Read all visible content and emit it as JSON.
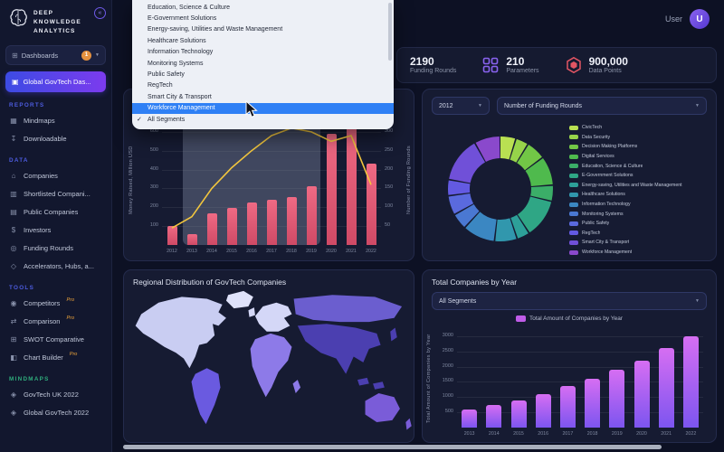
{
  "theme": {
    "page_bg": "#0d1124",
    "card_bg": "#161b32",
    "accent_gradient_start": "#3c4be4",
    "accent_gradient_end": "#7c3bee",
    "highlight_blue": "#2f80f5",
    "badge_orange": "#e6913f",
    "pro_orange": "#eda43b",
    "sections_blue": "#4d5ce0",
    "mindmaps_green": "#2fae7d",
    "bar_pink": "#e2556e",
    "line_yellow": "#f2c63e",
    "bar_purple": "#c05ce8"
  },
  "sidebar": {
    "logo_lines": [
      "DEEP",
      "KNOWLEDGE",
      "ANALYTICS"
    ],
    "dashboards_label": "Dashboards",
    "dashboards_badge": "1",
    "active_dashboard": "Global GovTech Das...",
    "pro_label": "Pro",
    "sections": [
      {
        "title": "REPORTS",
        "title_color": "#4d5ce0",
        "items": [
          {
            "label": "Mindmaps",
            "icon": "mindmaps-icon"
          },
          {
            "label": "Downloadable",
            "icon": "download-icon"
          }
        ]
      },
      {
        "title": "DATA",
        "title_color": "#4d5ce0",
        "items": [
          {
            "label": "Companies",
            "icon": "companies-icon"
          },
          {
            "label": "Shortlisted Compani...",
            "icon": "shortlisted-icon"
          },
          {
            "label": "Public Companies",
            "icon": "public-companies-icon"
          },
          {
            "label": "Investors",
            "icon": "investors-icon"
          },
          {
            "label": "Funding Rounds",
            "icon": "funding-rounds-icon"
          },
          {
            "label": "Accelerators, Hubs, a...",
            "icon": "accelerators-icon"
          }
        ]
      },
      {
        "title": "TOOLS",
        "title_color": "#4d5ce0",
        "items": [
          {
            "label": "Competitors",
            "icon": "competitors-icon",
            "pro": true
          },
          {
            "label": "Comparison",
            "icon": "comparison-icon",
            "pro": true
          },
          {
            "label": "SWOT Comparative",
            "icon": "swot-icon"
          },
          {
            "label": "Chart Builder",
            "icon": "chart-builder-icon",
            "pro": true
          }
        ]
      },
      {
        "title": "MINDMAPS",
        "title_color": "#2fae7d",
        "items": [
          {
            "label": "GovTech UK 2022",
            "icon": "mindmap-doc-icon"
          },
          {
            "label": "Global GovTech 2022",
            "icon": "mindmap-doc-icon"
          }
        ]
      }
    ]
  },
  "header": {
    "user_label": "User",
    "avatar_initial": "U"
  },
  "stats": [
    {
      "value": "2190",
      "label": "Funding Rounds"
    },
    {
      "value": "210",
      "label": "Parameters",
      "icon": "parameters-grid-icon",
      "icon_color": "#8a63f0"
    },
    {
      "value": "900,000",
      "label": "Data Points",
      "icon": "datapoints-hexagon-icon",
      "icon_color": "#e25563"
    }
  ],
  "dropdown": {
    "items": [
      {
        "label": "Education, Science & Culture"
      },
      {
        "label": "E-Government Solutions"
      },
      {
        "label": "Energy-saving, Utilities and Waste Management"
      },
      {
        "label": "Healthcare Solutions"
      },
      {
        "label": "Information Technology"
      },
      {
        "label": "Monitoring Systems"
      },
      {
        "label": "Public Safety"
      },
      {
        "label": "RegTech"
      },
      {
        "label": "Smart City & Transport"
      },
      {
        "label": "Workforce Management",
        "highlighted": true
      },
      {
        "label": "All Segments",
        "checked": true
      }
    ]
  },
  "chart_data": [
    {
      "id": "funding-by-year-combo",
      "type": "combo",
      "legend": [
        {
          "label": "Number of Funding Rounds",
          "color": "#f2c63e"
        },
        {
          "label": "Money Raised, Million USD",
          "color": "#e2556e"
        }
      ],
      "categories": [
        "2012",
        "2013",
        "2014",
        "2015",
        "2016",
        "2017",
        "2018",
        "2019",
        "2020",
        "2021",
        "2022"
      ],
      "series": [
        {
          "name": "Money Raised, Million USD",
          "type": "bar",
          "axis": "left",
          "values": [
            100,
            60,
            170,
            195,
            225,
            240,
            255,
            310,
            590,
            655,
            430
          ]
        },
        {
          "name": "Number of Funding Rounds",
          "type": "line",
          "axis": "right",
          "values": [
            45,
            75,
            150,
            205,
            250,
            290,
            310,
            300,
            275,
            290,
            160
          ]
        }
      ],
      "left_axis": {
        "label": "Money Raised, Million USD",
        "max": 700,
        "ticks": [
          100,
          200,
          300,
          400,
          500,
          600,
          700
        ]
      },
      "right_axis": {
        "label": "Number of Funding Rounds",
        "max": 350,
        "ticks": [
          50,
          100,
          150,
          200,
          250,
          300,
          350
        ]
      },
      "hover_region": {
        "from": "2013",
        "to": "2019"
      }
    },
    {
      "id": "segments-donut",
      "type": "donut",
      "filters": {
        "year": "2012",
        "metric": "Number of Funding Rounds"
      },
      "segments": [
        {
          "label": "CivicTech",
          "value": 5,
          "color": "#b9e052"
        },
        {
          "label": "Data Security",
          "value": 4,
          "color": "#97d44a"
        },
        {
          "label": "Decision Making Platforms",
          "value": 6,
          "color": "#72c746"
        },
        {
          "label": "Digital Services",
          "value": 9,
          "color": "#4fba4d"
        },
        {
          "label": "Education, Science & Culture",
          "value": 5,
          "color": "#3bae68"
        },
        {
          "label": "E-Government Solutions",
          "value": 12,
          "color": "#2fa685"
        },
        {
          "label": "Energy-saving, Utilities and Waste Management",
          "value": 4,
          "color": "#2da099"
        },
        {
          "label": "Healthcare Solutions",
          "value": 7,
          "color": "#3197ad"
        },
        {
          "label": "Information Technology",
          "value": 10,
          "color": "#3b87c2"
        },
        {
          "label": "Monitoring Systems",
          "value": 5,
          "color": "#4a78d2"
        },
        {
          "label": "Public Safety",
          "value": 6,
          "color": "#5a6ade"
        },
        {
          "label": "RegTech",
          "value": 5,
          "color": "#635ae2"
        },
        {
          "label": "Smart City & Transport",
          "value": 14,
          "color": "#7050d8"
        },
        {
          "label": "Workforce Management",
          "value": 8,
          "color": "#8a49cc"
        }
      ]
    },
    {
      "id": "regional-map",
      "type": "map",
      "title": "Regional Distribution of GovTech Companies",
      "regions": [
        {
          "name": "North America",
          "color": "#c9cdf2"
        },
        {
          "name": "South America",
          "color": "#6a5ae0"
        },
        {
          "name": "Europe",
          "color": "#d4d7f7"
        },
        {
          "name": "Africa",
          "color": "#8d7ae8"
        },
        {
          "name": "Russia & Central Asia",
          "color": "#6b5ecf"
        },
        {
          "name": "East & South Asia",
          "color": "#4b3fb0"
        },
        {
          "name": "Australia & Oceania",
          "color": "#7a5cd8"
        },
        {
          "name": "Greenland",
          "color": "#dfe2fa"
        }
      ]
    },
    {
      "id": "total-companies-by-year",
      "type": "bar",
      "title": "Total Companies by Year",
      "filter": "All Segments",
      "legend": [
        {
          "label": "Total Amount of Companies by Year",
          "color": "#c05ce8"
        }
      ],
      "categories": [
        "2013",
        "2014",
        "2015",
        "2016",
        "2017",
        "2018",
        "2019",
        "2020",
        "2021",
        "2022"
      ],
      "values": [
        600,
        750,
        900,
        1100,
        1350,
        1600,
        1900,
        2200,
        2600,
        3000
      ],
      "ylabel": "Total Amount of Companies by Year",
      "yticks": [
        500,
        1000,
        1500,
        2000,
        2500,
        3000
      ],
      "ymax": 3200
    }
  ]
}
